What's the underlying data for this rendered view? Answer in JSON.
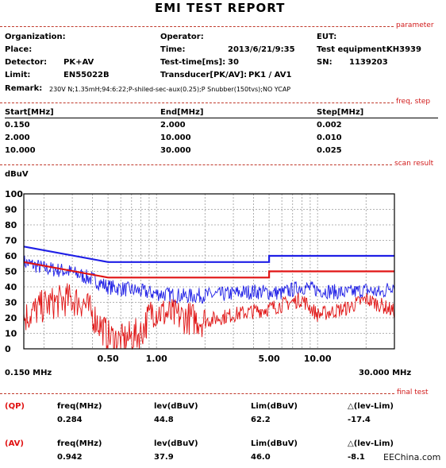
{
  "title": "EMI TEST REPORT",
  "sections": {
    "parameter": "parameter",
    "freq_step": "freq, step",
    "scan_result": "scan result",
    "final_test": "final test"
  },
  "params": {
    "organization_label": "Organization:",
    "place_label": "Place:",
    "detector_label": "Detector:",
    "detector_value": "PK+AV",
    "limit_label": "Limit:",
    "limit_value": "EN55022B",
    "operator_label": "Operator:",
    "time_label": "Time:",
    "time_value": "2013/6/21/9:35",
    "testtime_label": "Test-time[ms]:",
    "testtime_value": "30",
    "transducer_label": "Transducer[PK/AV]:",
    "transducer_value": "PK1  /  AV1",
    "eut_label": "EUT:",
    "equipment_label": "Test equipment:",
    "equipment_value": "KH3939",
    "sn_label": "SN:",
    "sn_value": "1139203",
    "remark_label": "Remark:",
    "remark_value": "230V N;1.35mH;94:6:22;P-shiled-sec-aux(0.25);P Snubber(150tvs);NO YCAP"
  },
  "freq_table": {
    "headers": [
      "Start[MHz]",
      "End[MHz]",
      "Step[MHz]"
    ],
    "rows": [
      [
        "0.150",
        "2.000",
        "0.002"
      ],
      [
        "2.000",
        "10.000",
        "0.010"
      ],
      [
        "10.000",
        "30.000",
        "0.025"
      ]
    ]
  },
  "final_test": {
    "qp": {
      "tag": "(QP)",
      "headers": [
        "freq(MHz)",
        "lev(dBuV)",
        "Lim(dBuV)",
        "△(lev-Lim)"
      ],
      "values": [
        "0.284",
        "44.8",
        "62.2",
        "-17.4"
      ]
    },
    "av": {
      "tag": "(AV)",
      "headers": [
        "freq(MHz)",
        "lev(dBuV)",
        "Lim(dBuV)",
        "△(lev-Lim)"
      ],
      "values": [
        "0.942",
        "37.9",
        "46.0",
        "-8.1"
      ]
    }
  },
  "watermark": "EEChina.com",
  "chart_data": {
    "type": "line",
    "ylabel": "dBuV",
    "x_unit_left": "0.150 MHz",
    "x_unit_right": "30.000 MHz",
    "xscale": "log",
    "xlim": [
      0.15,
      30
    ],
    "ylim": [
      0,
      100
    ],
    "yticks": [
      0,
      10,
      20,
      30,
      40,
      50,
      60,
      70,
      80,
      90,
      100
    ],
    "xtick_labels": [
      {
        "x": 0.5,
        "label": "0.50"
      },
      {
        "x": 1.0,
        "label": "1.00"
      },
      {
        "x": 5.0,
        "label": "5.00"
      },
      {
        "x": 10.0,
        "label": "10.00"
      }
    ],
    "grid": true,
    "colors": {
      "qp": "#1f1fe6",
      "av": "#e01414"
    },
    "limits": [
      {
        "name": "QP limit",
        "color": "#1f1fe6",
        "points": [
          [
            0.15,
            66
          ],
          [
            0.5,
            56
          ],
          [
            5,
            56
          ],
          [
            5,
            60
          ],
          [
            30,
            60
          ]
        ]
      },
      {
        "name": "AV limit",
        "color": "#e01414",
        "points": [
          [
            0.15,
            56
          ],
          [
            0.5,
            46
          ],
          [
            5,
            46
          ],
          [
            5,
            50
          ],
          [
            30,
            50
          ]
        ]
      }
    ],
    "series": [
      {
        "name": "PK",
        "color": "#1f1fe6",
        "points": [
          [
            0.15,
            56
          ],
          [
            0.2,
            52
          ],
          [
            0.284,
            50
          ],
          [
            0.4,
            45
          ],
          [
            0.5,
            40
          ],
          [
            0.7,
            38
          ],
          [
            0.942,
            36
          ],
          [
            1.5,
            34
          ],
          [
            2.5,
            35
          ],
          [
            4,
            37
          ],
          [
            6,
            36
          ],
          [
            8,
            40
          ],
          [
            10,
            38
          ],
          [
            15,
            36
          ],
          [
            20,
            38
          ],
          [
            25,
            36
          ],
          [
            30,
            42
          ]
        ]
      },
      {
        "name": "AV",
        "color": "#e01414",
        "points": [
          [
            0.15,
            20
          ],
          [
            0.2,
            28
          ],
          [
            0.284,
            32
          ],
          [
            0.35,
            30
          ],
          [
            0.45,
            15
          ],
          [
            0.5,
            8
          ],
          [
            0.6,
            5
          ],
          [
            0.8,
            10
          ],
          [
            0.942,
            25
          ],
          [
            1.2,
            22
          ],
          [
            2,
            18
          ],
          [
            3,
            22
          ],
          [
            5,
            26
          ],
          [
            8,
            32
          ],
          [
            10,
            22
          ],
          [
            15,
            26
          ],
          [
            20,
            32
          ],
          [
            25,
            28
          ],
          [
            30,
            24
          ]
        ]
      }
    ]
  }
}
